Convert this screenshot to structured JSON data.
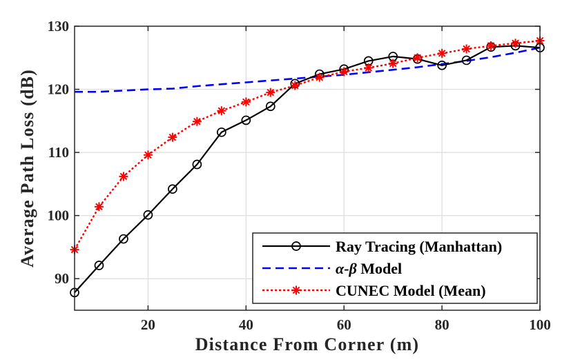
{
  "chart_data": {
    "type": "line",
    "title": "",
    "xlabel": "Distance From Corner (m)",
    "ylabel": "Average Path Loss (dB)",
    "xlim": [
      5,
      100
    ],
    "ylim": [
      85,
      130
    ],
    "xticks": [
      20,
      40,
      60,
      80,
      100
    ],
    "yticks": [
      90,
      100,
      110,
      120,
      130
    ],
    "grid": true,
    "legend_position": "bottom-right",
    "series": [
      {
        "name": "Ray Tracing (Manhattan)",
        "color": "#000000",
        "style": "solid",
        "marker": "circle",
        "x": [
          5,
          10,
          15,
          20,
          25,
          30,
          35,
          40,
          45,
          50,
          55,
          60,
          65,
          70,
          75,
          80,
          85,
          90,
          95,
          100
        ],
        "y": [
          87.8,
          92.1,
          96.3,
          100.1,
          104.2,
          108.1,
          113.2,
          115.1,
          117.3,
          120.9,
          122.4,
          123.2,
          124.5,
          125.2,
          124.8,
          123.8,
          124.6,
          126.7,
          126.9,
          126.6
        ]
      },
      {
        "name": "α-β Model",
        "legend_greek_alpha": "α",
        "legend_sep": "-",
        "legend_greek_beta": "β",
        "legend_suffix": " Model",
        "color": "#0000ff",
        "style": "dashed",
        "marker": "none",
        "x": [
          5,
          10,
          15,
          20,
          25,
          30,
          35,
          40,
          45,
          50,
          55,
          60,
          65,
          70,
          75,
          80,
          85,
          90,
          95,
          100
        ],
        "y": [
          119.6,
          119.6,
          119.8,
          120.0,
          120.1,
          120.5,
          120.8,
          121.1,
          121.4,
          121.7,
          122.0,
          122.3,
          122.7,
          123.1,
          123.5,
          124.0,
          124.5,
          125.1,
          125.8,
          126.6
        ]
      },
      {
        "name": "CUNEC Model (Mean)",
        "color": "#ff0000",
        "style": "dotted",
        "marker": "asterisk",
        "x": [
          5,
          10,
          15,
          20,
          25,
          30,
          35,
          40,
          45,
          50,
          55,
          60,
          65,
          70,
          75,
          80,
          85,
          90,
          95,
          100
        ],
        "y": [
          94.6,
          101.4,
          106.2,
          109.6,
          112.4,
          114.9,
          116.6,
          118.0,
          119.5,
          120.6,
          121.9,
          122.8,
          123.4,
          124.1,
          125.0,
          125.7,
          126.4,
          126.9,
          127.3,
          127.7
        ]
      }
    ]
  }
}
